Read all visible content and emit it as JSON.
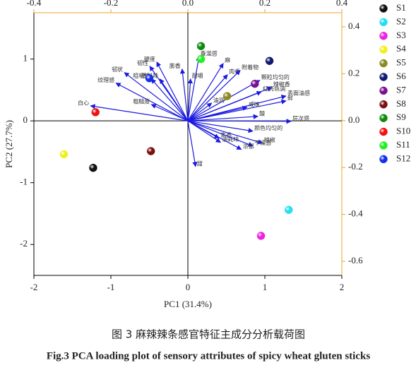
{
  "chart_data": {
    "type": "biplot",
    "caption_cn": "图 3 麻辣辣条感官特征主成分分析载荷图",
    "caption_en": "Fig.3 PCA loading plot of sensory attributes of spicy wheat gluten sticks",
    "xlabel": "PC1 (31.4%)",
    "ylabel": "PC2 (27.7%)",
    "xlim": [
      -2,
      2
    ],
    "ylim": [
      -2.5,
      1.75
    ],
    "xticks": [
      -2,
      -1,
      0,
      1,
      2
    ],
    "yticks": [
      -2,
      -1,
      0,
      1
    ],
    "x2lim": [
      -0.4,
      0.4
    ],
    "y2lim": [
      -0.66,
      0.46
    ],
    "x2ticks": [
      -0.4,
      -0.2,
      {
        "value": 0,
        "label": "0.0"
      },
      0.2,
      0.4
    ],
    "y2ticks": [
      0.4,
      0.2,
      {
        "value": 0,
        "label": "0.0"
      },
      -0.2,
      -0.4,
      -0.6
    ],
    "series": [
      {
        "name": "S1",
        "color": "#111111",
        "x": [
          -1.23
        ],
        "values": [
          -0.76
        ]
      },
      {
        "name": "S2",
        "color": "#22e0f0",
        "x": [
          1.31
        ],
        "values": [
          -1.44
        ]
      },
      {
        "name": "S3",
        "color": "#f020e0",
        "x": [
          0.95
        ],
        "values": [
          -1.86
        ]
      },
      {
        "name": "S4",
        "color": "#f0f020",
        "x": [
          -1.61
        ],
        "values": [
          -0.54
        ]
      },
      {
        "name": "S5",
        "color": "#8a8a20",
        "x": [
          0.51
        ],
        "values": [
          0.4
        ]
      },
      {
        "name": "S6",
        "color": "#101a70",
        "x": [
          1.06
        ],
        "values": [
          0.97
        ]
      },
      {
        "name": "S7",
        "color": "#7a1090",
        "x": [
          0.87
        ],
        "values": [
          0.6
        ]
      },
      {
        "name": "S8",
        "color": "#7a1010",
        "x": [
          -0.48
        ],
        "values": [
          -0.49
        ]
      },
      {
        "name": "S9",
        "color": "#108a10",
        "x": [
          0.17
        ],
        "values": [
          1.21
        ]
      },
      {
        "name": "S10",
        "color": "#f01010",
        "x": [
          -1.2
        ],
        "values": [
          0.14
        ]
      },
      {
        "name": "S11",
        "color": "#20f020",
        "x": [
          0.17
        ],
        "values": [
          1.0
        ]
      },
      {
        "name": "S12",
        "color": "#1030f0",
        "x": [
          -0.5
        ],
        "values": [
          0.69
        ]
      }
    ],
    "vector_color": "#1a1ae0",
    "loadings": [
      {
        "label": "白心",
        "x": -0.253,
        "y": 0.063
      },
      {
        "label": "纹理感",
        "x": -0.187,
        "y": 0.16
      },
      {
        "label": "韧状",
        "x": -0.165,
        "y": 0.205
      },
      {
        "label": "硬度",
        "x": -0.081,
        "y": 0.25
      },
      {
        "label": "韧性",
        "x": -0.099,
        "y": 0.232
      },
      {
        "label": "咀嚼性",
        "x": -0.095,
        "y": 0.178
      },
      {
        "label": "香料味",
        "x": -0.073,
        "y": 0.178
      },
      {
        "label": "粗糙度",
        "x": -0.095,
        "y": 0.069
      },
      {
        "label": "膨香",
        "x": -0.015,
        "y": 0.22
      },
      {
        "label": "垂涎感",
        "x": 0.029,
        "y": 0.274
      },
      {
        "label": "耐嚼",
        "x": 0.007,
        "y": 0.178
      },
      {
        "label": "麻",
        "x": 0.092,
        "y": 0.244
      },
      {
        "label": "肉香",
        "x": 0.103,
        "y": 0.196
      },
      {
        "label": "附着物",
        "x": 0.136,
        "y": 0.214
      },
      {
        "label": "颗粒均匀的",
        "x": 0.187,
        "y": 0.172
      },
      {
        "label": "辣椒香",
        "x": 0.218,
        "y": 0.142
      },
      {
        "label": "红亮色调",
        "x": 0.191,
        "y": 0.123
      },
      {
        "label": "表面油感",
        "x": 0.255,
        "y": 0.105
      },
      {
        "label": "鲜",
        "x": 0.255,
        "y": 0.084
      },
      {
        "label": "油润",
        "x": 0.062,
        "y": 0.075
      },
      {
        "label": "咸味",
        "x": 0.154,
        "y": 0.057
      },
      {
        "label": "酸",
        "x": 0.182,
        "y": 0.018
      },
      {
        "label": "层次感",
        "x": 0.268,
        "y": -0.003
      },
      {
        "label": "颜色均匀的",
        "x": 0.169,
        "y": -0.045
      },
      {
        "label": "焦香",
        "x": 0.081,
        "y": -0.075
      },
      {
        "label": "油耗味",
        "x": 0.085,
        "y": -0.093
      },
      {
        "label": "辣椒",
        "x": 0.194,
        "y": -0.096
      },
      {
        "label": "干燥感",
        "x": 0.169,
        "y": -0.108
      },
      {
        "label": "浓郁",
        "x": 0.139,
        "y": -0.123
      },
      {
        "label": "甜",
        "x": 0.02,
        "y": -0.196
      }
    ]
  }
}
